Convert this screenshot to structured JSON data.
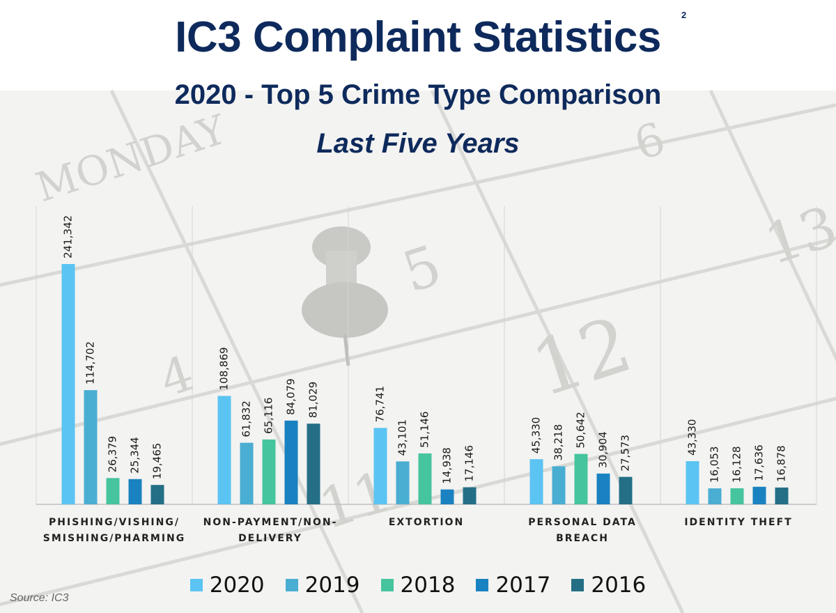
{
  "header": {
    "title": "IC3 Complaint Statistics",
    "footnote": "2",
    "subtitle": "2020 - Top 5 Crime Type Comparison",
    "subtitle2": "Last Five Years"
  },
  "source": "Source: IC3",
  "colors": {
    "2020": "#5bc4f2",
    "2019": "#4aaed3",
    "2018": "#46c49d",
    "2017": "#1a82c0",
    "2016": "#246f86",
    "title": "#0e2a5c"
  },
  "chart_data": {
    "type": "bar",
    "title": "",
    "xlabel": "",
    "ylabel": "",
    "ylim": [
      0,
      260000
    ],
    "grid": false,
    "legend_position": "bottom",
    "categories": [
      [
        "PHISHING/VISHING/",
        "SMISHING/PHARMING"
      ],
      [
        "NON-PAYMENT/NON-",
        "DELIVERY"
      ],
      [
        "EXTORTION"
      ],
      [
        "PERSONAL DATA",
        "BREACH"
      ],
      [
        "IDENTITY THEFT"
      ]
    ],
    "series": [
      {
        "name": "2020",
        "values": [
          241342,
          108869,
          76741,
          45330,
          43330
        ],
        "labels": [
          "241,342",
          "108,869",
          "76,741",
          "45,330",
          "43,330"
        ]
      },
      {
        "name": "2019",
        "values": [
          114702,
          61832,
          43101,
          38218,
          16053
        ],
        "labels": [
          "114,702",
          "61,832",
          "43,101",
          "38,218",
          "16,053"
        ]
      },
      {
        "name": "2018",
        "values": [
          26379,
          65116,
          51146,
          50642,
          16128
        ],
        "labels": [
          "26,379",
          "65,116",
          "51,146",
          "50,642",
          "16,128"
        ]
      },
      {
        "name": "2017",
        "values": [
          25344,
          84079,
          14938,
          30904,
          17636
        ],
        "labels": [
          "25,344",
          "84,079",
          "14,938",
          "30,904",
          "17,636"
        ]
      },
      {
        "name": "2016",
        "values": [
          19465,
          81029,
          17146,
          27573,
          16878
        ],
        "labels": [
          "19,465",
          "81,029",
          "17,146",
          "27,573",
          "16,878"
        ]
      }
    ]
  }
}
